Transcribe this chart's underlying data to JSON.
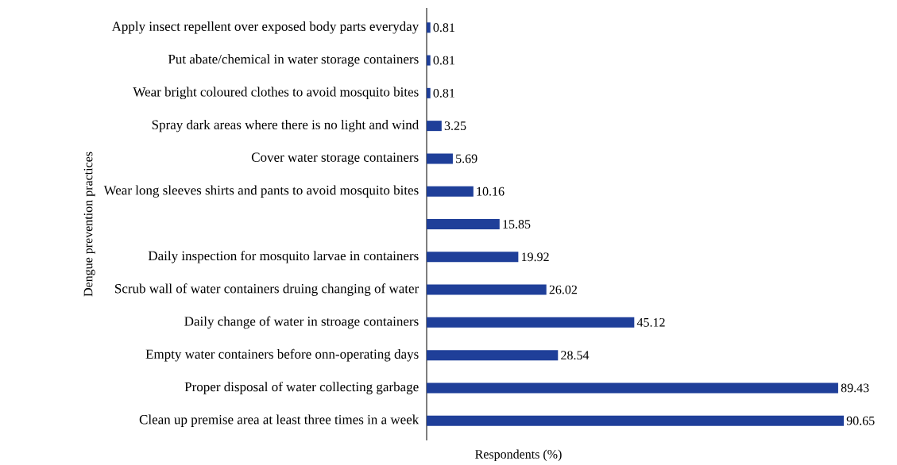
{
  "chart_data": {
    "type": "bar",
    "orientation": "horizontal",
    "xlabel": "Respondents (%)",
    "ylabel": "Dengue prevention practices",
    "categories": [
      "Apply insect repellent over exposed body parts everyday",
      "Put abate/chemical in water storage containers",
      "Wear bright coloured clothes to avoid mosquito bites",
      "Spray dark areas where there is no light and wind",
      "Cover water storage containers",
      "Wear long sleeves shirts and pants to avoid mosquito bites",
      null,
      "Daily inspection for mosquito larvae in containers",
      "Scrub wall of water containers druing changing of water",
      "Daily change of water in stroage containers",
      "Empty water containers before onn-operating days",
      "Proper disposal of water collecting garbage",
      "Clean up premise area at least three times in a week"
    ],
    "values": [
      0.81,
      0.81,
      0.81,
      3.25,
      5.69,
      10.16,
      15.85,
      19.92,
      26.02,
      45.12,
      28.54,
      89.43,
      90.65
    ],
    "color": "#1f3f99",
    "data_labels": true
  }
}
